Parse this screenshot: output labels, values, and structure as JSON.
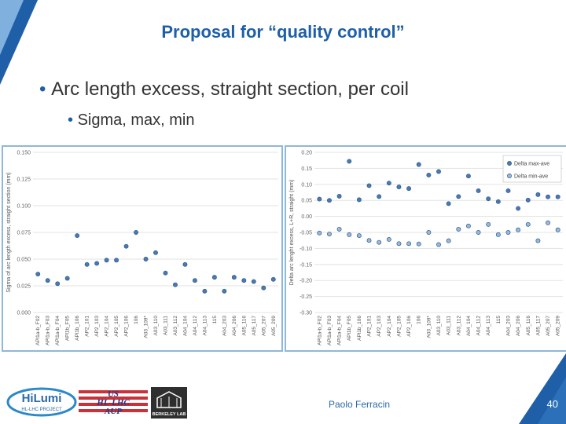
{
  "title": "Proposal for “quality control”",
  "bullets": [
    {
      "level": 1,
      "text": "Arc length excess, straight section, per coil"
    },
    {
      "level": 2,
      "text": "Sigma, max, min"
    }
  ],
  "footer": {
    "author": "Paolo Ferracin",
    "page": "40"
  },
  "logos": {
    "hilumi": {
      "main": "HiLumi",
      "sub": "HL-LHC PROJECT"
    },
    "us": {
      "line1": "US",
      "line2": "HL-LHC",
      "line3": "AUP"
    },
    "berkeley": {
      "label": "BERKELEY LAB"
    }
  },
  "colors": {
    "accent": "#1f5fa8",
    "marker": "#4a7ab0",
    "frame": "#8fb7d8"
  },
  "chart_data": [
    {
      "type": "scatter",
      "title": "",
      "ylabel": "Sigma of arc length excess, straight section (mm)",
      "ylim": [
        0,
        0.15
      ],
      "yticks": [
        0.0,
        0.025,
        0.05,
        0.075,
        0.1,
        0.125,
        0.15
      ],
      "ytick_labels": [
        "0.000",
        "0.025",
        "0.050",
        "0.075",
        "0.100",
        "0.125",
        "0.150"
      ],
      "categories": [
        "APl1a-b_F02",
        "APl1a-b_F03",
        "APl1a-b_F04",
        "APl1b_F05",
        "APl1b_106",
        "AP2_101",
        "AP2_103",
        "AP2_104",
        "AP2_105",
        "AP2_106",
        "106",
        "A03_109*",
        "A03_110",
        "A03_111",
        "A03_112",
        "A04_104",
        "A04_112",
        "A04_113",
        "115",
        "A04_203",
        "A04_206",
        "A05_116",
        "A05_117",
        "A05_207",
        "A05_209"
      ],
      "series": [
        {
          "name": "Sigma",
          "values": [
            0.036,
            0.03,
            0.027,
            0.032,
            0.072,
            0.045,
            0.046,
            0.049,
            0.049,
            0.062,
            0.075,
            0.05,
            0.056,
            0.037,
            0.026,
            0.045,
            0.03,
            0.02,
            0.033,
            0.02,
            0.033,
            0.03,
            0.029,
            0.023,
            0.031
          ]
        }
      ]
    },
    {
      "type": "scatter",
      "title": "",
      "ylabel": "Delta arc lenght excess, L+R, straight (mm)",
      "ylim": [
        -0.3,
        0.2
      ],
      "yticks": [
        -0.3,
        -0.25,
        -0.2,
        -0.15,
        -0.1,
        -0.05,
        0.0,
        0.05,
        0.1,
        0.15,
        0.2
      ],
      "ytick_labels": [
        "-0.30",
        "-0.25",
        "-0.20",
        "-0.15",
        "-0.10",
        "-0.05",
        "0.00",
        "0.05",
        "0.10",
        "0.15",
        "0.20"
      ],
      "legend": {
        "position": "top-right",
        "entries": [
          "Delta max-ave",
          "Delta min-ave"
        ]
      },
      "categories": [
        "APl1a-b_F02",
        "APl1a-b_F03",
        "APl1a-b_F04",
        "APl1b_F05",
        "APl1b_106",
        "AP2_101",
        "AP2_103",
        "AP2_104",
        "AP2_105",
        "AP2_106",
        "106",
        "A03_109*",
        "A03_110",
        "A03_111",
        "A03_112",
        "A04_104",
        "A04_112",
        "A04_113",
        "115",
        "A04_203",
        "A04_206",
        "A05_116",
        "A05_117",
        "A05_207",
        "A05_209"
      ],
      "series": [
        {
          "name": "Delta max-ave",
          "values": [
            0.054,
            0.05,
            0.063,
            0.172,
            0.052,
            0.096,
            0.062,
            0.104,
            0.092,
            0.087,
            0.162,
            0.129,
            0.14,
            0.04,
            0.062,
            0.126,
            0.08,
            0.055,
            0.046,
            0.08,
            0.025,
            0.051,
            0.068,
            0.061,
            0.061
          ]
        },
        {
          "name": "Delta min-ave",
          "values": [
            -0.052,
            -0.055,
            -0.04,
            -0.057,
            -0.06,
            -0.075,
            -0.081,
            -0.072,
            -0.085,
            -0.085,
            -0.086,
            -0.05,
            -0.088,
            -0.076,
            -0.04,
            -0.03,
            -0.05,
            -0.025,
            -0.057,
            -0.05,
            -0.042,
            -0.025,
            -0.076,
            -0.02,
            -0.042
          ]
        }
      ]
    }
  ]
}
